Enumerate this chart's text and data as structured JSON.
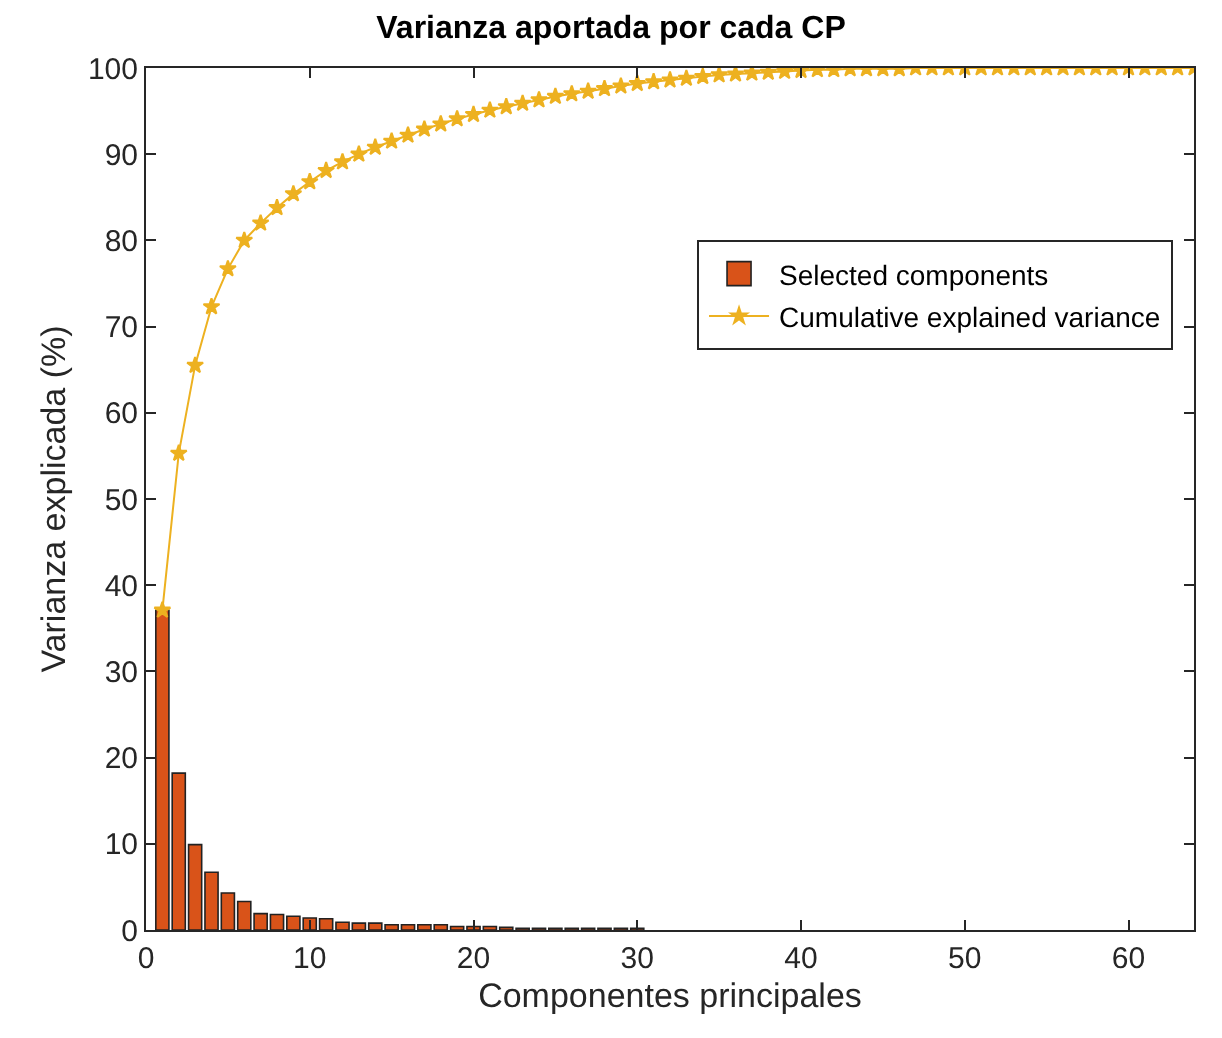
{
  "chart_data": {
    "type": "bar",
    "title": "Varianza aportada por cada CP",
    "xlabel": "Componentes principales",
    "ylabel": "Varianza explicada (%)",
    "xlim": [
      0,
      64
    ],
    "xticks": [
      0,
      10,
      20,
      30,
      40,
      50,
      60
    ],
    "ylim": [
      0,
      100
    ],
    "yticks": [
      0,
      10,
      20,
      30,
      40,
      50,
      60,
      70,
      80,
      90,
      100
    ],
    "legend": "top right",
    "series": [
      {
        "name": "Selected components",
        "color": "#d95319",
        "x": [
          1,
          2,
          3,
          4,
          5,
          6,
          7,
          8,
          9,
          10,
          11,
          12,
          13,
          14,
          15,
          16,
          17,
          18,
          19,
          20,
          21,
          22,
          23,
          24,
          25,
          26,
          27,
          28,
          29,
          30
        ],
        "values": [
          37.1,
          18.2,
          9.9,
          6.7,
          4.3,
          3.3,
          1.9,
          1.8,
          1.6,
          1.4,
          1.3,
          0.9,
          0.8,
          0.8,
          0.6,
          0.6,
          0.6,
          0.6,
          0.4,
          0.4,
          0.4,
          0.3,
          0.2,
          0.2,
          0.2,
          0.2,
          0.2,
          0.2,
          0.2,
          0.2
        ]
      },
      {
        "name": "Cumulative explained variance",
        "type": "line",
        "color": "#edb120",
        "marker": "star",
        "line_style": "solid",
        "x": [
          1,
          2,
          3,
          4,
          5,
          6,
          7,
          8,
          9,
          10,
          11,
          12,
          13,
          14,
          15,
          16,
          17,
          18,
          19,
          20,
          21,
          22,
          23,
          24,
          25,
          26,
          27,
          28,
          29,
          30,
          31,
          32,
          33,
          34,
          35,
          36,
          37,
          38,
          39,
          40,
          41,
          42,
          43,
          44,
          45,
          46,
          47,
          48,
          49,
          50,
          51,
          52,
          53,
          54,
          55,
          56,
          57,
          58,
          59,
          60,
          61,
          62,
          63,
          64
        ],
        "values": [
          37.1,
          55.3,
          65.5,
          72.3,
          76.7,
          80.0,
          82.0,
          83.8,
          85.4,
          86.8,
          88.1,
          89.1,
          90.0,
          90.8,
          91.5,
          92.2,
          92.9,
          93.5,
          94.1,
          94.6,
          95.1,
          95.5,
          95.9,
          96.3,
          96.7,
          97.0,
          97.3,
          97.6,
          97.9,
          98.2,
          98.4,
          98.6,
          98.8,
          99.0,
          99.2,
          99.3,
          99.4,
          99.5,
          99.6,
          99.7,
          99.8,
          99.8,
          99.9,
          99.9,
          99.9,
          99.9,
          100,
          100,
          100,
          100,
          100,
          100,
          100,
          100,
          100,
          100,
          100,
          100,
          100,
          100,
          100,
          100,
          100,
          100
        ]
      }
    ]
  }
}
